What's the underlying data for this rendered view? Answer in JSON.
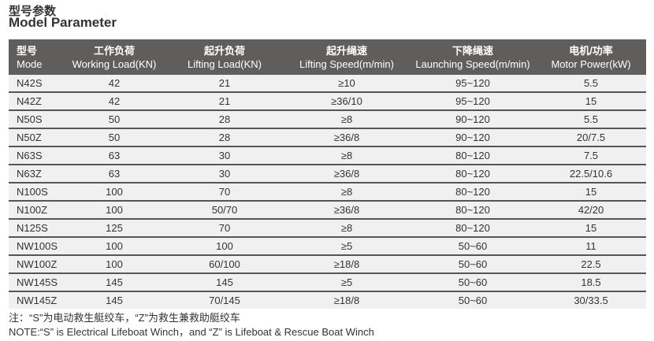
{
  "title": {
    "cn": "型号参数",
    "en": "Model Parameter"
  },
  "table": {
    "headers": [
      {
        "cn": "型号",
        "en": "Mode"
      },
      {
        "cn": "工作负荷",
        "en": "Working Load(KN)"
      },
      {
        "cn": "起升负荷",
        "en": "Lifting Load(KN)"
      },
      {
        "cn": "起升绳速",
        "en": "Lifting Speed(m/min)"
      },
      {
        "cn": "下降绳速",
        "en": "Launching Speed(m/min)"
      },
      {
        "cn": "电机/功率",
        "en": "Motor Power(kW)"
      }
    ],
    "rows": [
      [
        "N42S",
        "42",
        "21",
        "≥10",
        "95~120",
        "5.5"
      ],
      [
        "N42Z",
        "42",
        "21",
        "≥36/10",
        "95~120",
        "15"
      ],
      [
        "N50S",
        "50",
        "28",
        "≥8",
        "90~120",
        "5.5"
      ],
      [
        "N50Z",
        "50",
        "28",
        "≥36/8",
        "90~120",
        "20/7.5"
      ],
      [
        "N63S",
        "63",
        "30",
        "≥8",
        "80~120",
        "7.5"
      ],
      [
        "N63Z",
        "63",
        "30",
        "≥36/8",
        "80~120",
        "22.5/10.6"
      ],
      [
        "N100S",
        "100",
        "70",
        "≥8",
        "80~120",
        "15"
      ],
      [
        "N100Z",
        "100",
        "50/70",
        "≥36/8",
        "80~120",
        "42/20"
      ],
      [
        "N125S",
        "125",
        "70",
        "≥8",
        "80~120",
        "15"
      ],
      [
        "NW100S",
        "100",
        "100",
        "≥5",
        "50~60",
        "11"
      ],
      [
        "NW100Z",
        "100",
        "60/100",
        "≥18/8",
        "50~60",
        "22.5"
      ],
      [
        "NW145S",
        "145",
        "145",
        "≥5",
        "50~60",
        "18.5"
      ],
      [
        "NW145Z",
        "145",
        "70/145",
        "≥18/8",
        "50~60",
        "30/33.5"
      ]
    ]
  },
  "note": {
    "cn": "注：“S”为电动救生艇绞车，“Z”为救生兼救助艇绞车",
    "en": "NOTE:“S” is Electrical Lifeboat Winch，and “Z” is Lifeboat & Rescue Boat Winch"
  },
  "colors": {
    "header_bg": "#5f5e5c",
    "row_bg": "#f0f0f0",
    "row_divider": "#555555"
  }
}
